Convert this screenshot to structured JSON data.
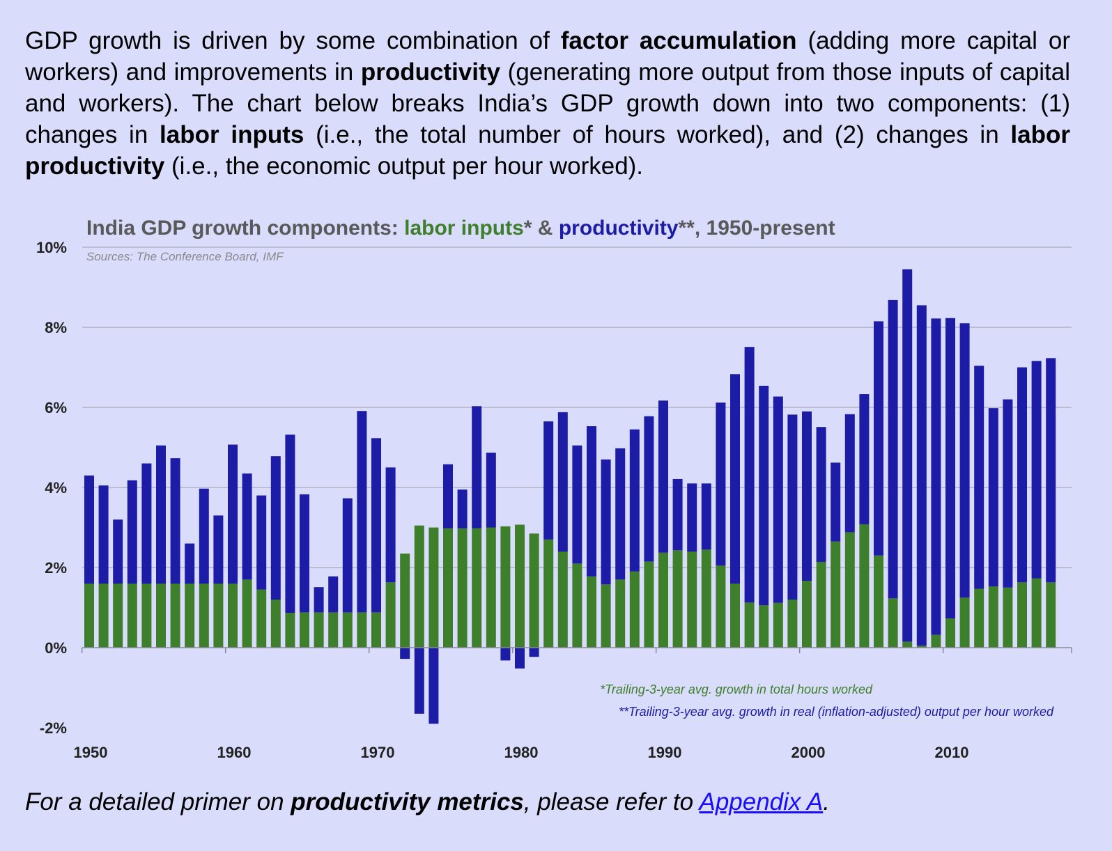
{
  "intro": {
    "s1": "GDP growth is driven by some combination of ",
    "b1": "factor accumulation",
    "s2": " (adding more capital or workers) and improvements in ",
    "b2": "productivity",
    "s3": " (generating more output from those inputs of capital and workers).  The chart below breaks India’s GDP growth down into two components: (1) changes in ",
    "b3": "labor inputs",
    "s4": " (i.e., the total number of hours worked), and (2) changes in ",
    "b4": "labor productivity",
    "s5": " (i.e., the economic output per hour worked)."
  },
  "footer": {
    "s1": "For a detailed primer on ",
    "b1": "productivity metrics",
    "s2": ", please refer to ",
    "link": "Appendix A",
    "s3": "."
  },
  "colors": {
    "labor": "#3e7f2c",
    "productivity": "#1c1ca6",
    "title_gray": "#595959",
    "grid": "#a9a9b8"
  },
  "chart_data": {
    "type": "bar",
    "stacked": true,
    "title_parts": [
      {
        "text": "India GDP growth components: ",
        "role": "gray"
      },
      {
        "text": "labor inputs",
        "role": "labor"
      },
      {
        "text": "* & ",
        "role": "gray"
      },
      {
        "text": "productivity",
        "role": "productivity"
      },
      {
        "text": "**, 1950-present",
        "role": "gray"
      }
    ],
    "source": "Sources: The Conference Board, IMF",
    "ylim": [
      -2,
      10
    ],
    "yticks": [
      -2,
      0,
      2,
      4,
      6,
      8,
      10
    ],
    "ytick_labels": [
      "-2%",
      "0%",
      "2%",
      "4%",
      "6%",
      "8%",
      "10%"
    ],
    "xticks": [
      1950,
      1960,
      1970,
      1980,
      1990,
      2000,
      2010
    ],
    "xtick_labels": [
      "1950",
      "1960",
      "1970",
      "1980",
      "1990",
      "2000",
      "2010"
    ],
    "grid": true,
    "notes": [
      {
        "text": "*Trailing-3-year avg. growth in total hours worked",
        "role": "labor"
      },
      {
        "text": "**Trailing-3-year avg. growth in real (inflation-adjusted) output per hour worked",
        "role": "productivity"
      }
    ],
    "categories": [
      1950,
      1951,
      1952,
      1953,
      1954,
      1955,
      1956,
      1957,
      1958,
      1959,
      1960,
      1961,
      1962,
      1963,
      1964,
      1965,
      1966,
      1967,
      1968,
      1969,
      1970,
      1971,
      1972,
      1973,
      1974,
      1975,
      1976,
      1977,
      1978,
      1979,
      1980,
      1981,
      1982,
      1983,
      1984,
      1985,
      1986,
      1987,
      1988,
      1989,
      1990,
      1991,
      1992,
      1993,
      1994,
      1995,
      1996,
      1997,
      1998,
      1999,
      2000,
      2001,
      2002,
      2003,
      2004,
      2005,
      2006,
      2007,
      2008,
      2009,
      2010,
      2011,
      2012,
      2013,
      2014,
      2015,
      2016,
      2017
    ],
    "series": [
      {
        "name": "labor inputs",
        "values": [
          1.6,
          1.6,
          1.6,
          1.6,
          1.6,
          1.6,
          1.6,
          1.6,
          1.6,
          1.6,
          1.6,
          1.7,
          1.45,
          1.2,
          0.87,
          0.88,
          0.88,
          0.88,
          0.88,
          0.88,
          0.88,
          1.63,
          2.35,
          3.05,
          3.0,
          2.98,
          2.98,
          2.98,
          3.0,
          3.03,
          3.07,
          2.85,
          2.7,
          2.4,
          2.1,
          1.78,
          1.58,
          1.7,
          1.9,
          2.15,
          2.37,
          2.43,
          2.4,
          2.45,
          2.05,
          1.6,
          1.13,
          1.06,
          1.12,
          1.2,
          1.67,
          2.14,
          2.65,
          2.88,
          3.08,
          2.3,
          1.23,
          0.15,
          0.05,
          0.32,
          0.73,
          1.25,
          1.47,
          1.53,
          1.5,
          1.63,
          1.73,
          1.63
        ]
      },
      {
        "name": "productivity",
        "values": [
          2.7,
          2.45,
          1.6,
          2.58,
          3.0,
          3.45,
          3.13,
          1.0,
          2.37,
          1.7,
          3.47,
          2.65,
          2.35,
          3.58,
          4.45,
          2.95,
          0.63,
          0.9,
          2.85,
          5.03,
          4.35,
          2.87,
          -0.28,
          -1.65,
          -1.9,
          1.6,
          0.97,
          3.05,
          1.87,
          -0.32,
          -0.52,
          -0.23,
          2.95,
          3.48,
          2.95,
          3.75,
          3.12,
          3.28,
          3.55,
          3.63,
          3.8,
          1.78,
          1.7,
          1.65,
          4.07,
          5.23,
          6.38,
          5.48,
          5.15,
          4.62,
          4.23,
          3.37,
          1.97,
          2.95,
          3.25,
          5.85,
          7.45,
          9.3,
          8.5,
          7.9,
          7.5,
          6.85,
          5.57,
          4.45,
          4.7,
          5.37,
          5.43,
          5.6
        ]
      }
    ]
  }
}
